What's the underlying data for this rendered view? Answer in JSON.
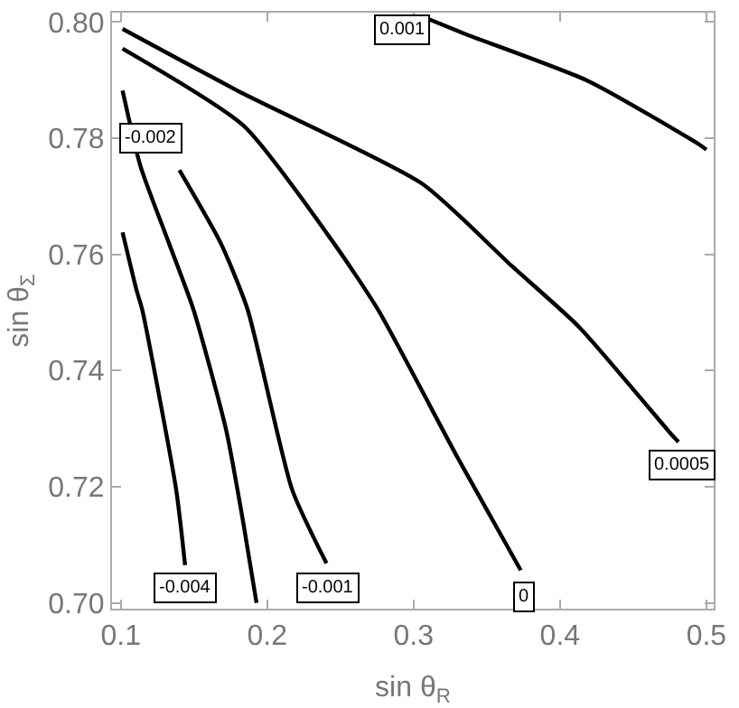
{
  "chart_data": {
    "type": "line",
    "xlabel": "sin θ$_{R}$",
    "ylabel": "sin θ$_{Σ}$",
    "xlim": [
      0.094,
      0.505
    ],
    "ylim": [
      0.699,
      0.8016
    ],
    "xticks": [
      0.1,
      0.2,
      0.3,
      0.4,
      0.5
    ],
    "yticks": [
      {
        "value": 0.7,
        "label": "0.70"
      },
      {
        "value": 0.72,
        "label": "0.72"
      },
      {
        "value": 0.74,
        "label": "0.74"
      },
      {
        "value": 0.76,
        "label": "0.76"
      },
      {
        "value": 0.78,
        "label": "0.78"
      },
      {
        "value": 0.8,
        "label": "0.80"
      }
    ],
    "grid": false,
    "legend": false,
    "marker": "none",
    "line_style": "solid",
    "series": [
      {
        "color": "#000000",
        "x": [
          0.1012,
          0.111,
          0.1146,
          0.1378,
          0.1439
        ],
        "values": [
          0.7638,
          0.7536,
          0.7505,
          0.7195,
          0.7065
        ]
      },
      {
        "color": "#000000",
        "x": [
          0.1012,
          0.1134,
          0.1329,
          0.1496,
          0.172,
          0.184,
          0.1927
        ],
        "values": [
          0.7882,
          0.7752,
          0.7619,
          0.7505,
          0.7297,
          0.7133,
          0.7
        ]
      },
      {
        "color": "#000000",
        "x": [
          0.14,
          0.1683,
          0.1866,
          0.217,
          0.2405
        ],
        "values": [
          0.7745,
          0.7619,
          0.7505,
          0.7195,
          0.7068
        ]
      },
      {
        "color": "#000000",
        "x": [
          0.1012,
          0.184,
          0.245,
          0.2756,
          0.3305,
          0.3732
        ],
        "values": [
          0.7954,
          0.7821,
          0.7621,
          0.7505,
          0.7248,
          0.7056
        ]
      },
      {
        "color": "#000000",
        "x": [
          0.1012,
          0.1841,
          0.3061,
          0.367,
          0.4134,
          0.4768,
          0.481
        ],
        "values": [
          0.7988,
          0.7876,
          0.7721,
          0.758,
          0.7474,
          0.7288,
          0.7277
        ]
      },
      {
        "color": "#000000",
        "x": [
          0.31,
          0.3366,
          0.4195,
          0.4951,
          0.5
        ],
        "values": [
          0.8005,
          0.7978,
          0.7898,
          0.7789,
          0.778
        ]
      }
    ],
    "annotations": [
      {
        "text": "-0.004",
        "x": 0.144,
        "y": 0.7027
      },
      {
        "text": "-0.002",
        "x": 0.1207,
        "y": 0.7799
      },
      {
        "text": "-0.001",
        "x": 0.2415,
        "y": 0.7027
      },
      {
        "text": "0",
        "x": 0.3756,
        "y": 0.7009
      },
      {
        "text": "0.0005",
        "x": 0.4829,
        "y": 0.7238
      },
      {
        "text": "0.001",
        "x": 0.2922,
        "y": 0.7985
      }
    ]
  }
}
